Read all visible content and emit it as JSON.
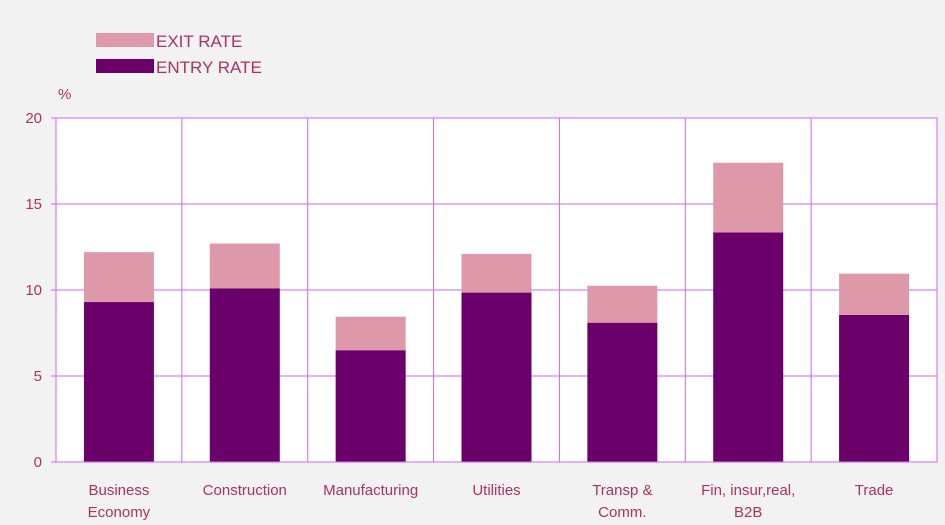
{
  "colors": {
    "background": "#f2f2f2",
    "plot_background": "#ffffff",
    "grid": "#cc66ff",
    "text": "#b03060",
    "entry": "#6b006b",
    "exit": "#dd99aa"
  },
  "chart_data": {
    "type": "bar",
    "stacked": true,
    "ylabel": "%",
    "ylim": [
      0,
      20
    ],
    "yticks": [
      "0",
      "5",
      "10",
      "15",
      "20"
    ],
    "grid": true,
    "legend_position": "top-left",
    "categories": [
      [
        "Business",
        "Economy"
      ],
      [
        "Construction"
      ],
      [
        "Manufacturing"
      ],
      [
        "Utilities"
      ],
      [
        "Transp &",
        "Comm."
      ],
      [
        "Fin, insur,real,",
        "B2B"
      ],
      [
        "Trade"
      ]
    ],
    "series": [
      {
        "name": "ENTRY RATE",
        "color": "#6b006b",
        "values": [
          9.3,
          10.1,
          6.5,
          9.85,
          8.1,
          13.35,
          8.55
        ]
      },
      {
        "name": "EXIT RATE",
        "color": "#dd99aa",
        "values": [
          2.9,
          2.6,
          1.95,
          2.25,
          2.15,
          4.05,
          2.4
        ]
      }
    ]
  }
}
